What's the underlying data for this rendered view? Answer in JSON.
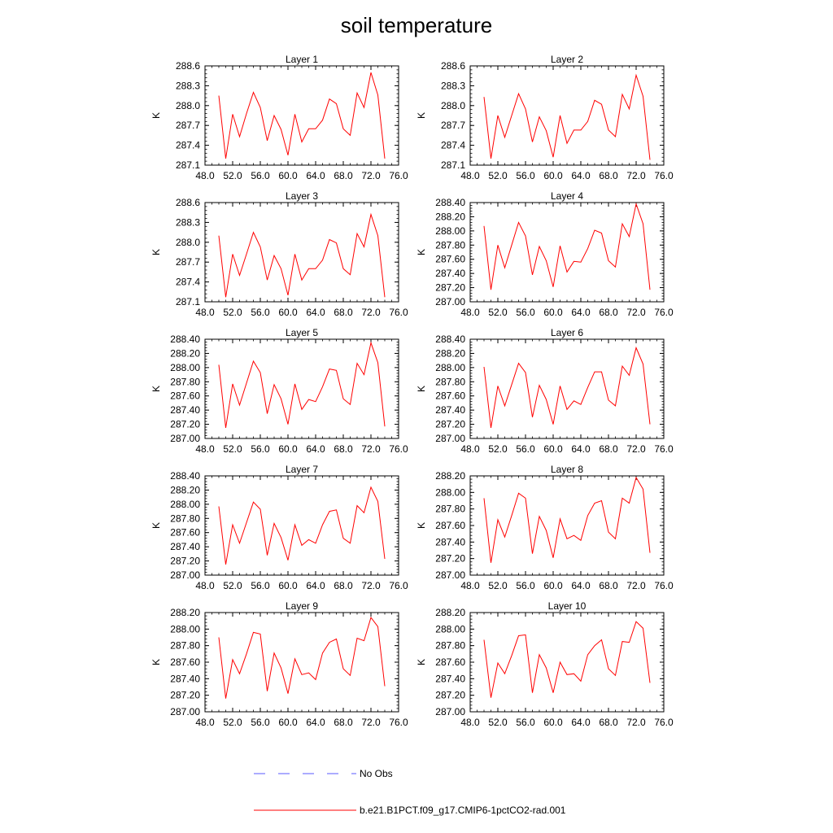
{
  "figure": {
    "title": "soil temperature",
    "legend": [
      {
        "label": "No Obs",
        "color": "#5a5aff",
        "style": "dashed"
      },
      {
        "label": "b.e21.B1PCT.f09_g17.CMIP6-1pctCO2-rad.001",
        "color": "#ff0000",
        "style": "solid"
      }
    ]
  },
  "chart_data": [
    {
      "type": "line",
      "title": "Layer 1",
      "ylabel": "K",
      "xlim": [
        48,
        76
      ],
      "ylim": [
        287.1,
        288.6
      ],
      "xticks": [
        "48.0",
        "52.0",
        "56.0",
        "60.0",
        "64.0",
        "68.0",
        "72.0",
        "76.0"
      ],
      "yticks": [
        "287.1",
        "287.4",
        "287.7",
        "288.0",
        "288.3",
        "288.6"
      ],
      "series": [
        {
          "color": "#ff0000",
          "x": [
            50,
            51,
            52,
            53,
            54,
            55,
            56,
            57,
            58,
            59,
            60,
            61,
            62,
            63,
            64,
            65,
            66,
            67,
            68,
            69,
            70,
            71,
            72,
            73,
            74
          ],
          "values": [
            288.15,
            287.2,
            287.87,
            287.53,
            287.88,
            288.2,
            287.97,
            287.47,
            287.85,
            287.64,
            287.25,
            287.87,
            287.45,
            287.65,
            287.65,
            287.78,
            288.1,
            288.03,
            287.65,
            287.55,
            288.19,
            287.97,
            288.5,
            288.16,
            287.2
          ]
        }
      ]
    },
    {
      "type": "line",
      "title": "Layer 2",
      "ylabel": "K",
      "xlim": [
        48,
        76
      ],
      "ylim": [
        287.1,
        288.6
      ],
      "xticks": [
        "48.0",
        "52.0",
        "56.0",
        "60.0",
        "64.0",
        "68.0",
        "72.0",
        "76.0"
      ],
      "yticks": [
        "287.1",
        "287.4",
        "287.7",
        "288.0",
        "288.3",
        "288.6"
      ],
      "series": [
        {
          "color": "#ff0000",
          "x": [
            50,
            51,
            52,
            53,
            54,
            55,
            56,
            57,
            58,
            59,
            60,
            61,
            62,
            63,
            64,
            65,
            66,
            67,
            68,
            69,
            70,
            71,
            72,
            73,
            74
          ],
          "values": [
            288.13,
            287.2,
            287.85,
            287.52,
            287.85,
            288.18,
            287.95,
            287.45,
            287.83,
            287.62,
            287.22,
            287.85,
            287.43,
            287.63,
            287.63,
            287.76,
            288.08,
            288.02,
            287.63,
            287.53,
            288.17,
            287.95,
            288.46,
            288.14,
            287.18
          ]
        }
      ]
    },
    {
      "type": "line",
      "title": "Layer 3",
      "ylabel": "K",
      "xlim": [
        48,
        76
      ],
      "ylim": [
        287.1,
        288.6
      ],
      "xticks": [
        "48.0",
        "52.0",
        "56.0",
        "60.0",
        "64.0",
        "68.0",
        "72.0",
        "76.0"
      ],
      "yticks": [
        "287.1",
        "287.4",
        "287.7",
        "288.0",
        "288.3",
        "288.6"
      ],
      "series": [
        {
          "color": "#ff0000",
          "x": [
            50,
            51,
            52,
            53,
            54,
            55,
            56,
            57,
            58,
            59,
            60,
            61,
            62,
            63,
            64,
            65,
            66,
            67,
            68,
            69,
            70,
            71,
            72,
            73,
            74
          ],
          "values": [
            288.1,
            287.17,
            287.82,
            287.5,
            287.82,
            288.15,
            287.93,
            287.43,
            287.8,
            287.6,
            287.2,
            287.82,
            287.43,
            287.6,
            287.6,
            287.73,
            288.04,
            287.99,
            287.6,
            287.51,
            288.13,
            287.93,
            288.42,
            288.1,
            287.17
          ]
        }
      ]
    },
    {
      "type": "line",
      "title": "Layer 4",
      "ylabel": "K",
      "xlim": [
        48,
        76
      ],
      "ylim": [
        287.0,
        288.4
      ],
      "xticks": [
        "48.0",
        "52.0",
        "56.0",
        "60.0",
        "64.0",
        "68.0",
        "72.0",
        "76.0"
      ],
      "yticks": [
        "287.00",
        "287.20",
        "287.40",
        "287.60",
        "287.80",
        "288.00",
        "288.20",
        "288.40"
      ],
      "series": [
        {
          "color": "#ff0000",
          "x": [
            50,
            51,
            52,
            53,
            54,
            55,
            56,
            57,
            58,
            59,
            60,
            61,
            62,
            63,
            64,
            65,
            66,
            67,
            68,
            69,
            70,
            71,
            72,
            73,
            74
          ],
          "values": [
            288.07,
            287.17,
            287.8,
            287.48,
            287.8,
            288.12,
            287.93,
            287.38,
            287.78,
            287.58,
            287.21,
            287.79,
            287.42,
            287.57,
            287.56,
            287.75,
            288.01,
            287.97,
            287.58,
            287.49,
            288.1,
            287.92,
            288.38,
            288.1,
            287.17
          ]
        }
      ]
    },
    {
      "type": "line",
      "title": "Layer 5",
      "ylabel": "K",
      "xlim": [
        48,
        76
      ],
      "ylim": [
        287.0,
        288.4
      ],
      "xticks": [
        "48.0",
        "52.0",
        "56.0",
        "60.0",
        "64.0",
        "68.0",
        "72.0",
        "76.0"
      ],
      "yticks": [
        "287.00",
        "287.20",
        "287.40",
        "287.60",
        "287.80",
        "288.00",
        "288.20",
        "288.40"
      ],
      "series": [
        {
          "color": "#ff0000",
          "x": [
            50,
            51,
            52,
            53,
            54,
            55,
            56,
            57,
            58,
            59,
            60,
            61,
            62,
            63,
            64,
            65,
            66,
            67,
            68,
            69,
            70,
            71,
            72,
            73,
            74
          ],
          "values": [
            288.04,
            287.15,
            287.77,
            287.47,
            287.78,
            288.09,
            287.93,
            287.35,
            287.76,
            287.56,
            287.2,
            287.77,
            287.41,
            287.55,
            287.52,
            287.73,
            287.98,
            287.96,
            287.56,
            287.48,
            288.06,
            287.9,
            288.35,
            288.07,
            287.17
          ]
        }
      ]
    },
    {
      "type": "line",
      "title": "Layer 6",
      "ylabel": "K",
      "xlim": [
        48,
        76
      ],
      "ylim": [
        287.0,
        288.4
      ],
      "xticks": [
        "48.0",
        "52.0",
        "56.0",
        "60.0",
        "64.0",
        "68.0",
        "72.0",
        "76.0"
      ],
      "yticks": [
        "287.00",
        "287.20",
        "287.40",
        "287.60",
        "287.80",
        "288.00",
        "288.20",
        "288.40"
      ],
      "series": [
        {
          "color": "#ff0000",
          "x": [
            50,
            51,
            52,
            53,
            54,
            55,
            56,
            57,
            58,
            59,
            60,
            61,
            62,
            63,
            64,
            65,
            66,
            67,
            68,
            69,
            70,
            71,
            72,
            73,
            74
          ],
          "values": [
            288.01,
            287.15,
            287.74,
            287.46,
            287.76,
            288.06,
            287.93,
            287.3,
            287.75,
            287.55,
            287.2,
            287.74,
            287.41,
            287.53,
            287.48,
            287.72,
            287.94,
            287.94,
            287.54,
            287.46,
            288.02,
            287.89,
            288.28,
            288.05,
            287.2
          ]
        }
      ]
    },
    {
      "type": "line",
      "title": "Layer 7",
      "ylabel": "K",
      "xlim": [
        48,
        76
      ],
      "ylim": [
        287.0,
        288.4
      ],
      "xticks": [
        "48.0",
        "52.0",
        "56.0",
        "60.0",
        "64.0",
        "68.0",
        "72.0",
        "76.0"
      ],
      "yticks": [
        "287.00",
        "287.20",
        "287.40",
        "287.60",
        "287.80",
        "288.00",
        "288.20",
        "288.40"
      ],
      "series": [
        {
          "color": "#ff0000",
          "x": [
            50,
            51,
            52,
            53,
            54,
            55,
            56,
            57,
            58,
            59,
            60,
            61,
            62,
            63,
            64,
            65,
            66,
            67,
            68,
            69,
            70,
            71,
            72,
            73,
            74
          ],
          "values": [
            287.97,
            287.15,
            287.71,
            287.45,
            287.74,
            288.03,
            287.93,
            287.28,
            287.73,
            287.53,
            287.21,
            287.71,
            287.42,
            287.5,
            287.45,
            287.71,
            287.9,
            287.92,
            287.52,
            287.45,
            287.98,
            287.88,
            288.24,
            288.04,
            287.23
          ]
        }
      ]
    },
    {
      "type": "line",
      "title": "Layer 8",
      "ylabel": "K",
      "xlim": [
        48,
        76
      ],
      "ylim": [
        287.0,
        288.2
      ],
      "xticks": [
        "48.0",
        "52.0",
        "56.0",
        "60.0",
        "64.0",
        "68.0",
        "72.0",
        "76.0"
      ],
      "yticks": [
        "287.00",
        "287.20",
        "287.40",
        "287.60",
        "287.80",
        "288.00",
        "288.20"
      ],
      "series": [
        {
          "color": "#ff0000",
          "x": [
            50,
            51,
            52,
            53,
            54,
            55,
            56,
            57,
            58,
            59,
            60,
            61,
            62,
            63,
            64,
            65,
            66,
            67,
            68,
            69,
            70,
            71,
            72,
            73,
            74
          ],
          "values": [
            287.93,
            287.15,
            287.67,
            287.46,
            287.72,
            287.99,
            287.93,
            287.26,
            287.71,
            287.54,
            287.21,
            287.68,
            287.44,
            287.48,
            287.42,
            287.72,
            287.87,
            287.9,
            287.52,
            287.44,
            287.93,
            287.87,
            288.18,
            288.04,
            287.27
          ]
        }
      ]
    },
    {
      "type": "line",
      "title": "Layer 9",
      "ylabel": "K",
      "xlim": [
        48,
        76
      ],
      "ylim": [
        287.0,
        288.2
      ],
      "xticks": [
        "48.0",
        "52.0",
        "56.0",
        "60.0",
        "64.0",
        "68.0",
        "72.0",
        "76.0"
      ],
      "yticks": [
        "287.00",
        "287.20",
        "287.40",
        "287.60",
        "287.80",
        "288.00",
        "288.20"
      ],
      "series": [
        {
          "color": "#ff0000",
          "x": [
            50,
            51,
            52,
            53,
            54,
            55,
            56,
            57,
            58,
            59,
            60,
            61,
            62,
            63,
            64,
            65,
            66,
            67,
            68,
            69,
            70,
            71,
            72,
            73,
            74
          ],
          "values": [
            287.9,
            287.16,
            287.63,
            287.46,
            287.7,
            287.96,
            287.94,
            287.25,
            287.71,
            287.53,
            287.22,
            287.64,
            287.45,
            287.47,
            287.39,
            287.71,
            287.84,
            287.88,
            287.52,
            287.44,
            287.89,
            287.86,
            288.14,
            288.03,
            287.31
          ]
        }
      ]
    },
    {
      "type": "line",
      "title": "Layer 10",
      "ylabel": "K",
      "xlim": [
        48,
        76
      ],
      "ylim": [
        287.0,
        288.2
      ],
      "xticks": [
        "48.0",
        "52.0",
        "56.0",
        "60.0",
        "64.0",
        "68.0",
        "72.0",
        "76.0"
      ],
      "yticks": [
        "287.00",
        "287.20",
        "287.40",
        "287.60",
        "287.80",
        "288.00",
        "288.20"
      ],
      "series": [
        {
          "color": "#ff0000",
          "x": [
            50,
            51,
            52,
            53,
            54,
            55,
            56,
            57,
            58,
            59,
            60,
            61,
            62,
            63,
            64,
            65,
            66,
            67,
            68,
            69,
            70,
            71,
            72,
            73,
            74
          ],
          "values": [
            287.87,
            287.17,
            287.59,
            287.46,
            287.68,
            287.92,
            287.93,
            287.23,
            287.69,
            287.53,
            287.23,
            287.6,
            287.45,
            287.46,
            287.37,
            287.69,
            287.8,
            287.87,
            287.52,
            287.44,
            287.85,
            287.84,
            288.09,
            288.01,
            287.35
          ]
        }
      ]
    }
  ]
}
